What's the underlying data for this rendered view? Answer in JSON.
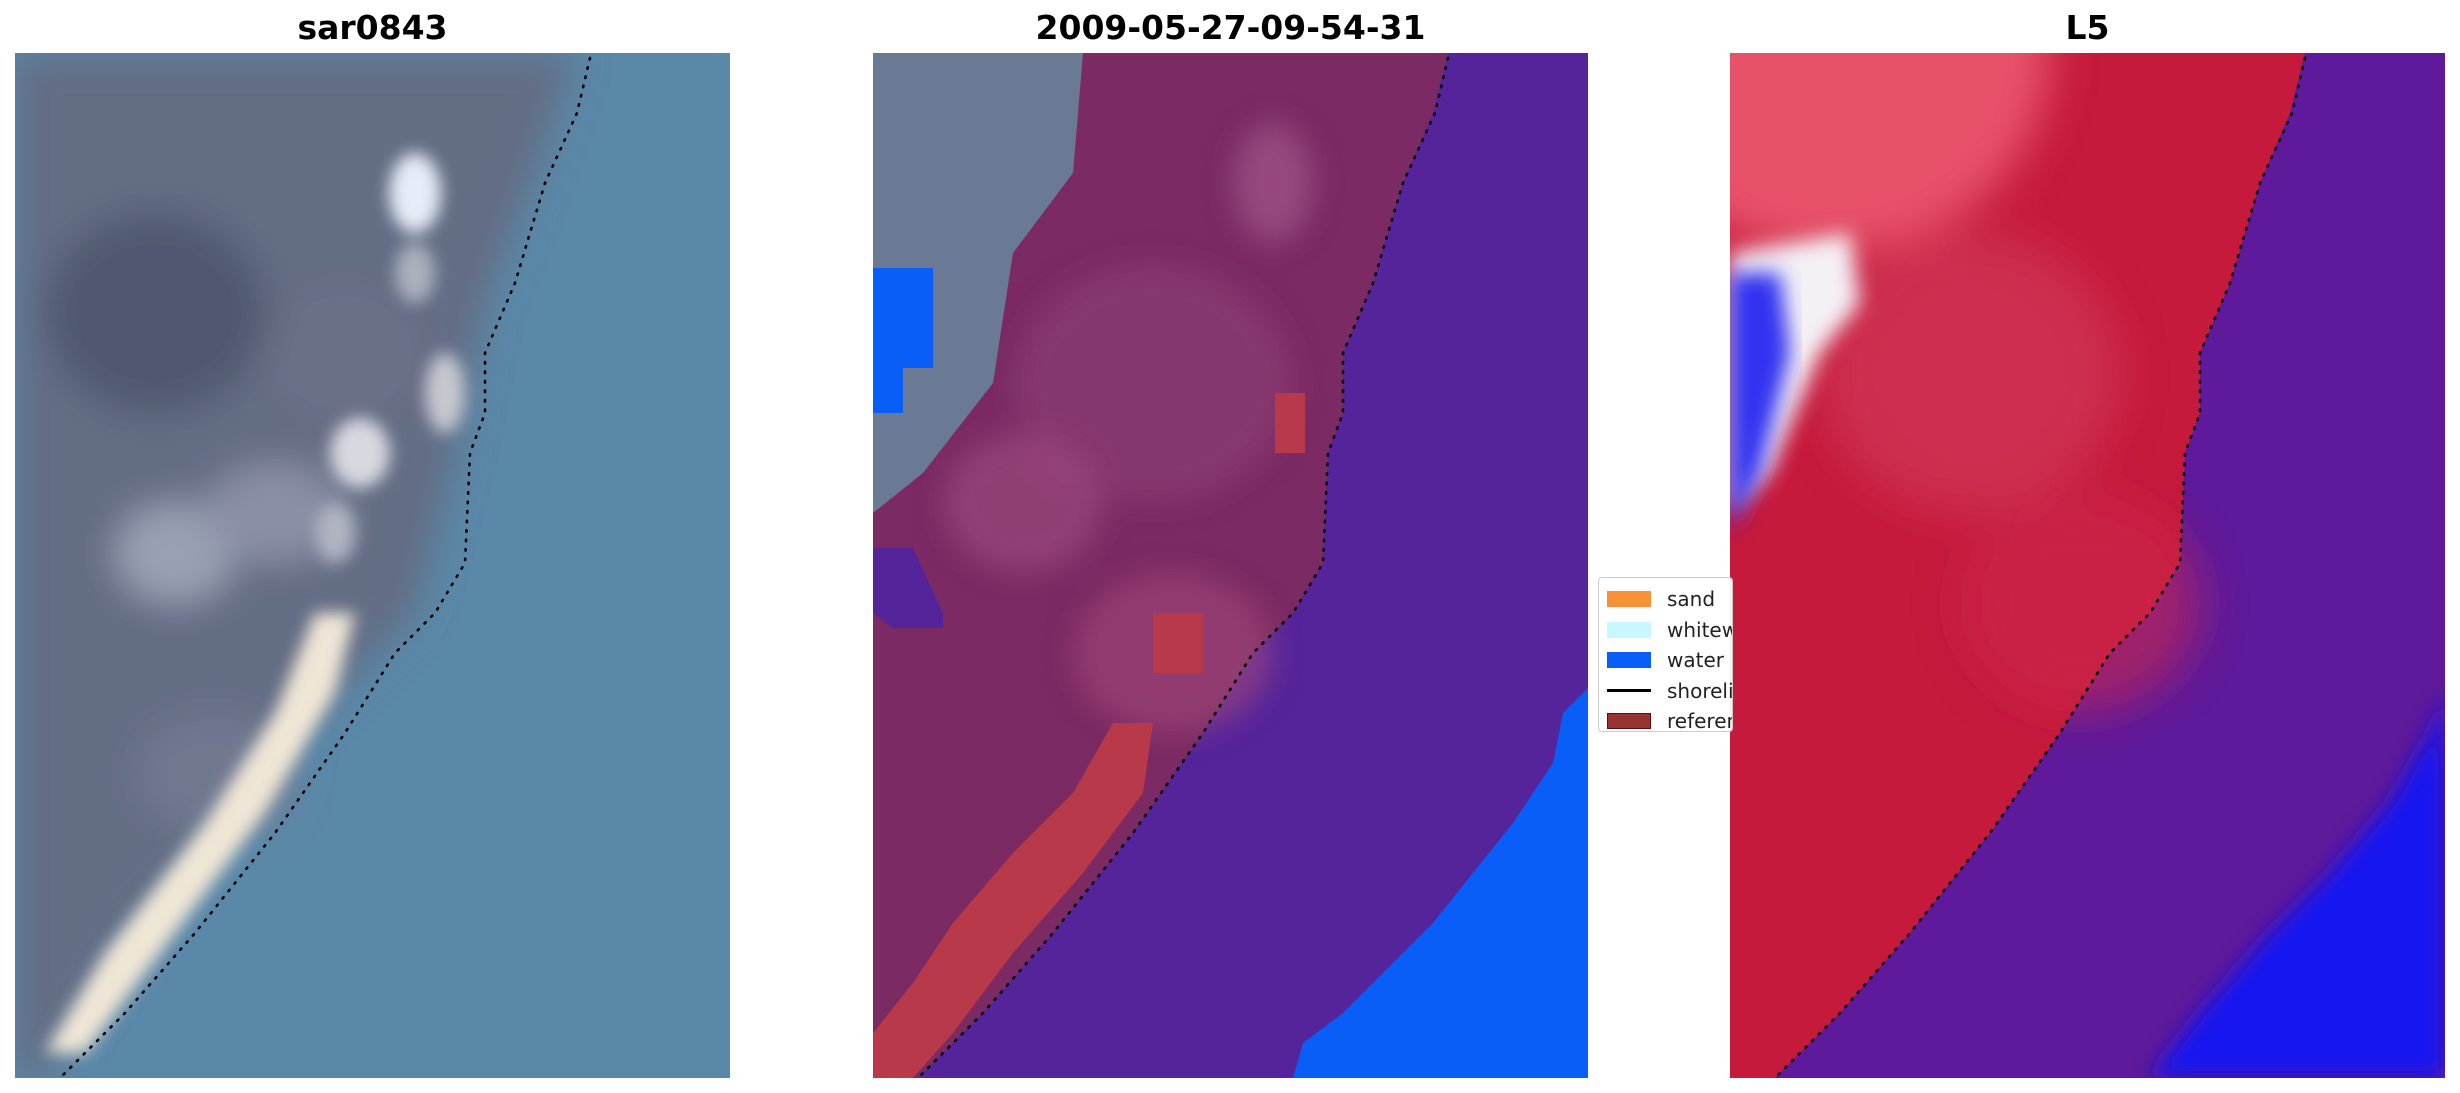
{
  "panels": [
    {
      "title": "sar0843"
    },
    {
      "title": "2009-05-27-09-54-31"
    },
    {
      "title": "L5"
    }
  ],
  "legend": {
    "items": [
      {
        "label": "sand",
        "color": "#f79036"
      },
      {
        "label": "whitewater",
        "color": "#c8f8ff"
      },
      {
        "label": "water",
        "color": "#0a5ef8"
      },
      {
        "label": "shoreline",
        "color": "#000000"
      },
      {
        "label": "reference",
        "color": "#993333"
      }
    ]
  },
  "colors": {
    "ocean": "#5a88a8",
    "land_dark": "#626b82",
    "sand_bright": "#efe6d6",
    "class_land_purple": "#7b2a63",
    "class_water_purple": "#55249a",
    "class_water_blue": "#0a5ef8",
    "reference_red": "#b83a4a",
    "index_red": "#c51a3c",
    "index_purple": "#5e1a9a",
    "index_blue": "#1818f0",
    "index_white": "#f4f0f6"
  }
}
